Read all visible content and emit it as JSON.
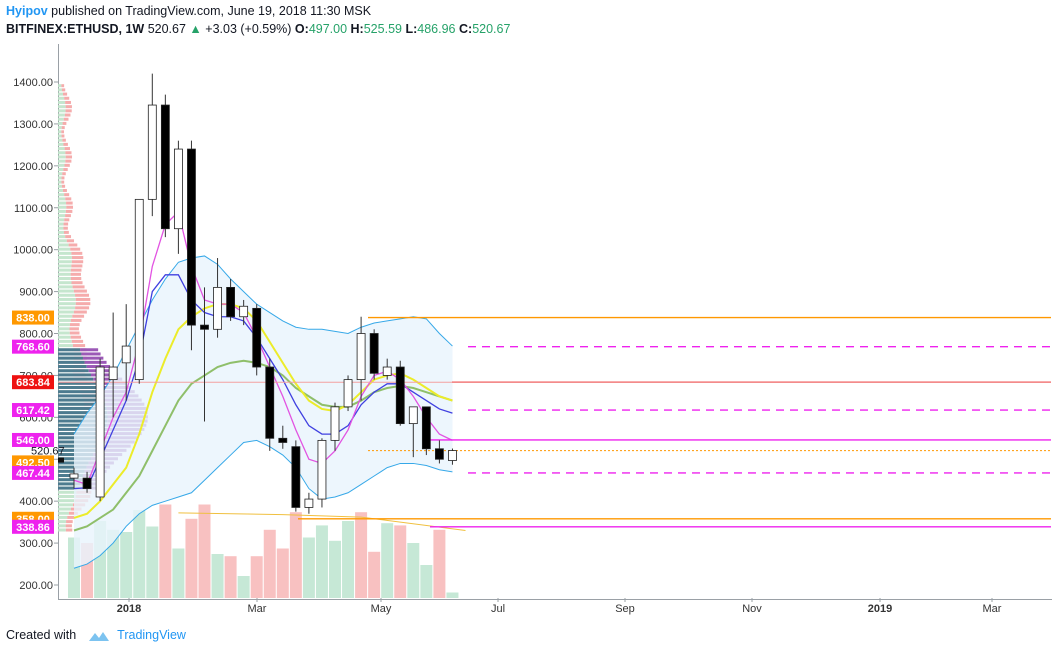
{
  "header": {
    "author": "Hyipov",
    "published": "published on TradingView.com, June 19, 2018 11:30 MSK",
    "symbol": "BITFINEX:ETHUSD, 1W",
    "last": "520.67",
    "change_arrow": "▲",
    "change": "+3.03 (+0.59%)",
    "o_label": "O:",
    "o_value": "497.00",
    "h_label": "H:",
    "h_value": "525.59",
    "l_label": "L:",
    "l_value": "486.96",
    "c_label": "C:",
    "c_value": "520.67"
  },
  "footer": {
    "created_with": "Created with",
    "brand": "TradingView"
  },
  "colors": {
    "up_body": "#ffffff",
    "down_body": "#000000",
    "vol_up": "#c6e8d6",
    "vol_down": "#f8c1c1",
    "band": "#36a8e8",
    "band_fill": "#e8f4fc",
    "ema_fast": "#e254e2",
    "ema_mid": "#4040e0",
    "ema_yellow": "#ecec2a",
    "ema_green": "#8fbf6a",
    "orange": "#ff9800",
    "magenta": "#ee22ee",
    "red": "#ee1111"
  },
  "chart_data": {
    "type": "candlestick",
    "title": "BITFINEX:ETHUSD, 1W",
    "ylim": [
      180,
      1450
    ],
    "y_ticks": [
      200,
      300,
      400,
      500,
      600,
      700,
      800,
      900,
      1000,
      1100,
      1200,
      1300,
      1400
    ],
    "y_tick_labels": [
      "200.00",
      "300.00",
      "400.00",
      "500.00",
      "600.00",
      "700.00",
      "800.00",
      "900.00",
      "1000.00",
      "1100.00",
      "1200.00",
      "1300.00",
      "1400.00"
    ],
    "x_ticks": [
      "2018",
      "Mar",
      "May",
      "Jul",
      "Sep",
      "Nov",
      "2019",
      "Mar"
    ],
    "candles": [
      {
        "o": 455,
        "h": 480,
        "l": 430,
        "c": 465
      },
      {
        "o": 455,
        "h": 470,
        "l": 420,
        "c": 430
      },
      {
        "o": 410,
        "h": 740,
        "l": 400,
        "c": 720
      },
      {
        "o": 690,
        "h": 850,
        "l": 600,
        "c": 720
      },
      {
        "o": 730,
        "h": 870,
        "l": 640,
        "c": 770
      },
      {
        "o": 690,
        "h": 1120,
        "l": 680,
        "c": 1120
      },
      {
        "o": 1120,
        "h": 1420,
        "l": 1080,
        "c": 1345
      },
      {
        "o": 1345,
        "h": 1370,
        "l": 1030,
        "c": 1050
      },
      {
        "o": 1050,
        "h": 1260,
        "l": 990,
        "c": 1240
      },
      {
        "o": 1240,
        "h": 1260,
        "l": 760,
        "c": 820
      },
      {
        "o": 820,
        "h": 910,
        "l": 590,
        "c": 810
      },
      {
        "o": 810,
        "h": 980,
        "l": 790,
        "c": 910
      },
      {
        "o": 910,
        "h": 930,
        "l": 830,
        "c": 840
      },
      {
        "o": 840,
        "h": 880,
        "l": 820,
        "c": 865
      },
      {
        "o": 860,
        "h": 870,
        "l": 700,
        "c": 720
      },
      {
        "o": 720,
        "h": 740,
        "l": 520,
        "c": 550
      },
      {
        "o": 550,
        "h": 580,
        "l": 525,
        "c": 540
      },
      {
        "o": 530,
        "h": 545,
        "l": 375,
        "c": 385
      },
      {
        "o": 385,
        "h": 420,
        "l": 370,
        "c": 405
      },
      {
        "o": 405,
        "h": 550,
        "l": 385,
        "c": 545
      },
      {
        "o": 545,
        "h": 635,
        "l": 520,
        "c": 625
      },
      {
        "o": 625,
        "h": 700,
        "l": 615,
        "c": 690
      },
      {
        "o": 690,
        "h": 840,
        "l": 640,
        "c": 800
      },
      {
        "o": 800,
        "h": 810,
        "l": 690,
        "c": 705
      },
      {
        "o": 700,
        "h": 740,
        "l": 690,
        "c": 720
      },
      {
        "o": 720,
        "h": 735,
        "l": 580,
        "c": 585
      },
      {
        "o": 585,
        "h": 620,
        "l": 505,
        "c": 625
      },
      {
        "o": 625,
        "h": 625,
        "l": 510,
        "c": 525
      },
      {
        "o": 525,
        "h": 545,
        "l": 490,
        "c": 500
      },
      {
        "o": 497,
        "h": 525.59,
        "l": 486.96,
        "c": 520.67
      }
    ],
    "volume": [
      {
        "v": 0.55,
        "up": true
      },
      {
        "v": 0.5,
        "up": false
      },
      {
        "v": 0.7,
        "up": true
      },
      {
        "v": 0.62,
        "up": true
      },
      {
        "v": 0.6,
        "up": true
      },
      {
        "v": 0.8,
        "up": true
      },
      {
        "v": 0.65,
        "up": true
      },
      {
        "v": 0.85,
        "up": false
      },
      {
        "v": 0.45,
        "up": true
      },
      {
        "v": 0.72,
        "up": false
      },
      {
        "v": 0.85,
        "up": false
      },
      {
        "v": 0.4,
        "up": true
      },
      {
        "v": 0.38,
        "up": false
      },
      {
        "v": 0.2,
        "up": true
      },
      {
        "v": 0.38,
        "up": false
      },
      {
        "v": 0.62,
        "up": false
      },
      {
        "v": 0.45,
        "up": false
      },
      {
        "v": 0.78,
        "up": false
      },
      {
        "v": 0.55,
        "up": true
      },
      {
        "v": 0.66,
        "up": true
      },
      {
        "v": 0.52,
        "up": true
      },
      {
        "v": 0.7,
        "up": true
      },
      {
        "v": 0.78,
        "up": false
      },
      {
        "v": 0.42,
        "up": false
      },
      {
        "v": 0.68,
        "up": true
      },
      {
        "v": 0.66,
        "up": false
      },
      {
        "v": 0.5,
        "up": true
      },
      {
        "v": 0.3,
        "up": true
      },
      {
        "v": 0.62,
        "up": false
      },
      {
        "v": 0.05,
        "up": true
      }
    ],
    "bb_upper": [
      560,
      610,
      650,
      700,
      760,
      820,
      880,
      930,
      970,
      980,
      985,
      965,
      930,
      900,
      870,
      850,
      830,
      815,
      810,
      810,
      805,
      800,
      815,
      825,
      830,
      835,
      840,
      835,
      800,
      770
    ],
    "bb_lower": [
      240,
      250,
      270,
      300,
      340,
      370,
      390,
      400,
      410,
      420,
      450,
      480,
      510,
      540,
      545,
      530,
      510,
      480,
      430,
      405,
      410,
      420,
      440,
      460,
      480,
      490,
      490,
      485,
      475,
      470
    ],
    "ema_fast_line": [
      450,
      440,
      520,
      600,
      660,
      780,
      960,
      1060,
      1090,
      960,
      880,
      870,
      870,
      850,
      790,
      720,
      650,
      570,
      500,
      490,
      520,
      570,
      650,
      700,
      710,
      690,
      650,
      600,
      560,
      545
    ],
    "ema_mid_line": [
      430,
      432,
      500,
      570,
      640,
      740,
      900,
      940,
      940,
      880,
      850,
      840,
      840,
      830,
      790,
      740,
      690,
      630,
      580,
      560,
      560,
      580,
      630,
      660,
      680,
      680,
      660,
      640,
      620,
      610
    ],
    "ema_yellow_line": [
      360,
      370,
      400,
      440,
      480,
      560,
      660,
      740,
      810,
      840,
      860,
      870,
      870,
      860,
      830,
      780,
      730,
      680,
      640,
      620,
      615,
      630,
      660,
      690,
      700,
      705,
      690,
      670,
      650,
      640
    ],
    "ema_green_line": [
      330,
      340,
      360,
      380,
      420,
      460,
      520,
      580,
      640,
      680,
      700,
      720,
      730,
      735,
      730,
      720,
      700,
      670,
      650,
      630,
      625,
      625,
      640,
      660,
      670,
      675,
      670,
      660,
      650,
      640
    ],
    "levels": [
      {
        "label": "838.00",
        "value": 838,
        "color": "#ff9800",
        "style": "solid"
      },
      {
        "label": "768.60",
        "value": 768.6,
        "color": "#ee22ee",
        "style": "dashed"
      },
      {
        "label": "683.84",
        "value": 683.84,
        "color": "#ee1111",
        "style": "solid"
      },
      {
        "label": "617.42",
        "value": 617.42,
        "color": "#ee22ee",
        "style": "dashed"
      },
      {
        "label": "546.00",
        "value": 546,
        "color": "#ee22ee",
        "style": "solid"
      },
      {
        "label": "520.67",
        "value": 520.67,
        "color": "#ff9800",
        "style": "dotted"
      },
      {
        "label": "492.50",
        "value": 492.5,
        "color": "#ff9800",
        "style": "none"
      },
      {
        "label": "467.44",
        "value": 467.44,
        "color": "#ee22ee",
        "style": "dashed"
      },
      {
        "label": "358.00",
        "value": 358,
        "color": "#ff9800",
        "style": "solid"
      },
      {
        "label": "338.86",
        "value": 338.86,
        "color": "#ee22ee",
        "style": "solid"
      }
    ]
  }
}
